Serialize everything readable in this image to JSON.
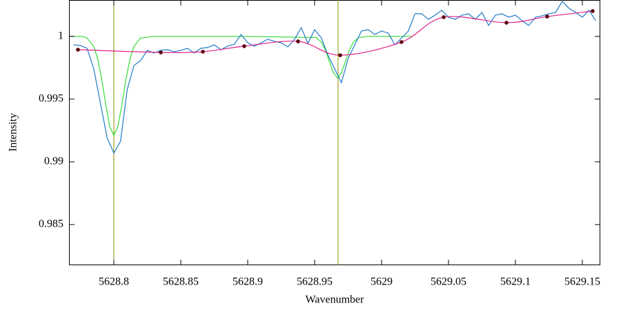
{
  "chart_data": {
    "type": "line",
    "xlabel": "Wavenumber",
    "ylabel": "Intensity",
    "xlim": [
      5628.7665,
      5629.1634
    ],
    "ylim": [
      0.98176,
      1.0029
    ],
    "xticks": [
      5628.8,
      5628.85,
      5628.9,
      5628.95,
      5629,
      5629.05,
      5629.1,
      5629.15
    ],
    "yticks": [
      0.985,
      0.99,
      0.995,
      1
    ],
    "vlines": {
      "color": "#8c8c00",
      "x": [
        5628.8,
        5628.9675
      ]
    },
    "series": [
      {
        "color": "#33dd33",
        "x": [
          5628.767,
          5628.776,
          5628.78,
          5628.785,
          5628.788,
          5628.791,
          5628.794,
          5628.797,
          5628.8,
          5628.803,
          5628.806,
          5628.809,
          5628.812,
          5628.815,
          5628.82,
          5628.83,
          5628.9,
          5628.951,
          5628.955,
          5628.958,
          5628.961,
          5628.964,
          5628.967,
          5628.97,
          5628.973,
          5628.976,
          5628.979,
          5628.983,
          5628.99,
          5629.023
        ],
        "values": [
          1,
          1,
          0.99987,
          0.9992,
          0.99818,
          0.99655,
          0.99453,
          0.99279,
          0.9921,
          0.99279,
          0.99453,
          0.99655,
          0.99818,
          0.9992,
          0.99987,
          1,
          1,
          0.99991,
          0.99955,
          0.99893,
          0.998,
          0.99709,
          0.9967,
          0.99709,
          0.998,
          0.99893,
          0.99955,
          0.99991,
          1,
          1
        ]
      },
      {
        "color": "#1f7ac8",
        "x": [
          5628.77,
          5628.775,
          5628.78,
          5628.785,
          5628.79,
          5628.795,
          5628.8,
          5628.805,
          5628.81,
          5628.815,
          5628.82,
          5628.825,
          5628.83,
          5628.835,
          5628.84,
          5628.845,
          5628.85,
          5628.855,
          5628.86,
          5628.865,
          5628.87,
          5628.875,
          5628.88,
          5628.885,
          5628.89,
          5628.895,
          5628.9,
          5628.905,
          5628.91,
          5628.915,
          5628.92,
          5628.925,
          5628.93,
          5628.935,
          5628.94,
          5628.945,
          5628.95,
          5628.955,
          5628.96,
          5628.965,
          5628.97,
          5628.975,
          5628.98,
          5628.985,
          5628.99,
          5628.995,
          5629,
          5629.005,
          5629.01,
          5629.015,
          5629.02,
          5629.025,
          5629.03,
          5629.035,
          5629.04,
          5629.045,
          5629.05,
          5629.055,
          5629.06,
          5629.065,
          5629.07,
          5629.075,
          5629.08,
          5629.085,
          5629.09,
          5629.095,
          5629.1,
          5629.105,
          5629.11,
          5629.115,
          5629.12,
          5629.125,
          5629.13,
          5629.135,
          5629.14,
          5629.145,
          5629.15,
          5629.155,
          5629.16
        ],
        "values": [
          0.99933,
          0.99927,
          0.99905,
          0.99741,
          0.99466,
          0.99191,
          0.9907,
          0.99164,
          0.99576,
          0.99768,
          0.99807,
          0.99889,
          0.99867,
          0.99889,
          0.99894,
          0.99878,
          0.99889,
          0.99905,
          0.99867,
          0.99905,
          0.99911,
          0.99933,
          0.99894,
          0.99922,
          0.99938,
          1.00015,
          0.99949,
          0.99922,
          0.99949,
          0.99977,
          0.9996,
          0.99949,
          0.99916,
          0.99977,
          1.0007,
          0.99944,
          1.00054,
          0.99988,
          0.9985,
          0.99741,
          0.99631,
          0.99823,
          0.99933,
          1.00043,
          1.00054,
          1.00015,
          1.00043,
          1.00026,
          0.99933,
          0.99988,
          1.00043,
          1.0018,
          1.0018,
          1.00136,
          1.00169,
          1.00208,
          1.00153,
          1.00136,
          1.00169,
          1.0018,
          1.00136,
          1.00191,
          1.00087,
          1.00169,
          1.0018,
          1.00153,
          1.00169,
          1.00125,
          1.00087,
          1.00153,
          1.00164,
          1.0018,
          1.00191,
          1.00279,
          1.00224,
          1.00191,
          1.00153,
          1.00208,
          1.00125
        ]
      },
      {
        "color": "#e0208a",
        "smooth": true,
        "markers": true,
        "marker_color": "#5a0010",
        "x": [
          5628.7732,
          5628.8351,
          5628.8665,
          5628.8974,
          5628.9376,
          5628.9691,
          5629.0149,
          5629.0464,
          5629.0933,
          5629.1237,
          5629.1577
        ],
        "values": [
          0.99894,
          0.99872,
          0.99878,
          0.99922,
          0.9996,
          0.9985,
          0.99955,
          1.00153,
          1.00109,
          1.00158,
          1.00202
        ]
      }
    ]
  }
}
